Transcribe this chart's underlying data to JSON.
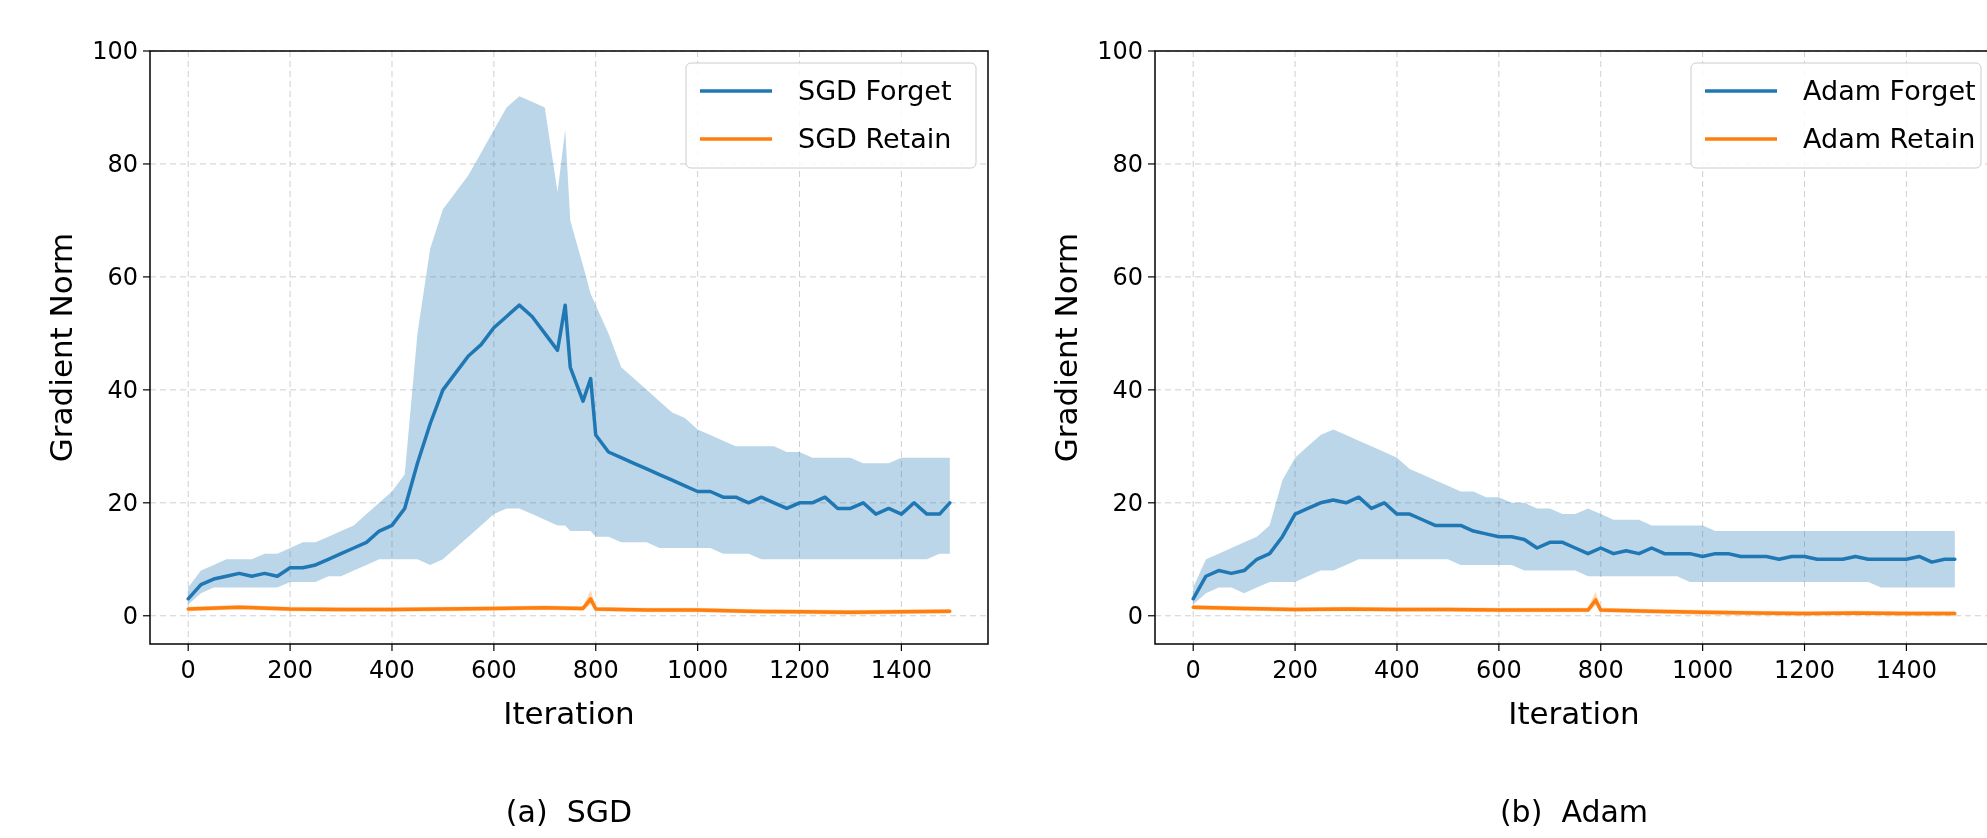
{
  "chart_data": [
    {
      "type": "line",
      "xlabel": "Iteration",
      "ylabel": "Gradient Norm",
      "xlim": [
        -75,
        1570
      ],
      "ylim": [
        -5,
        100
      ],
      "xticks": [
        0,
        200,
        400,
        600,
        800,
        1000,
        1200,
        1400
      ],
      "yticks": [
        0,
        20,
        40,
        60,
        80,
        100
      ],
      "grid": true,
      "legend": "top right",
      "line_style": "solid",
      "annotations": [
        "(a)  SGD"
      ],
      "series": [
        {
          "name": "SGD Forget",
          "color": "#1f77b4",
          "x": [
            0,
            25,
            50,
            75,
            100,
            125,
            150,
            175,
            200,
            225,
            250,
            275,
            300,
            325,
            350,
            375,
            400,
            425,
            450,
            475,
            500,
            525,
            550,
            575,
            600,
            625,
            650,
            675,
            700,
            725,
            740,
            750,
            775,
            790,
            800,
            825,
            850,
            875,
            900,
            925,
            950,
            975,
            1000,
            1025,
            1050,
            1075,
            1100,
            1125,
            1150,
            1175,
            1200,
            1225,
            1250,
            1275,
            1300,
            1325,
            1350,
            1375,
            1400,
            1425,
            1450,
            1475,
            1495
          ],
          "values": [
            3,
            5.5,
            6.5,
            7,
            7.5,
            7,
            7.5,
            7,
            8.5,
            8.5,
            9,
            10,
            11,
            12,
            13,
            15,
            16,
            19,
            27,
            34,
            40,
            43,
            46,
            48,
            51,
            53,
            55,
            53,
            50,
            47,
            55,
            44,
            38,
            42,
            32,
            29,
            28,
            27,
            26,
            25,
            24,
            23,
            22,
            22,
            21,
            21,
            20,
            21,
            20,
            19,
            20,
            20,
            21,
            19,
            19,
            20,
            18,
            19,
            18,
            20,
            18,
            18,
            20
          ],
          "lower": [
            2,
            4,
            5,
            5,
            5,
            5,
            5,
            5,
            6,
            6,
            6,
            7,
            7,
            8,
            9,
            10,
            10,
            10,
            10,
            9,
            10,
            12,
            14,
            16,
            18,
            19,
            19,
            18,
            17,
            16,
            16,
            15,
            15,
            15,
            14,
            14,
            13,
            13,
            13,
            12,
            12,
            12,
            12,
            12,
            11,
            11,
            11,
            10,
            10,
            10,
            10,
            10,
            10,
            10,
            10,
            10,
            10,
            10,
            10,
            10,
            10,
            11,
            11
          ],
          "upper": [
            5,
            8,
            9,
            10,
            10,
            10,
            11,
            11,
            12,
            13,
            13,
            14,
            15,
            16,
            18,
            20,
            22,
            25,
            50,
            65,
            72,
            75,
            78,
            82,
            86,
            90,
            92,
            91,
            90,
            75,
            86,
            70,
            62,
            57,
            55,
            50,
            44,
            42,
            40,
            38,
            36,
            35,
            33,
            32,
            31,
            30,
            30,
            30,
            30,
            29,
            29,
            28,
            28,
            28,
            28,
            27,
            27,
            27,
            28,
            28,
            28,
            28,
            28
          ]
        },
        {
          "name": "SGD Retain",
          "color": "#ff7f0e",
          "x": [
            0,
            100,
            200,
            300,
            400,
            500,
            600,
            700,
            775,
            790,
            800,
            900,
            1000,
            1100,
            1200,
            1300,
            1400,
            1495
          ],
          "values": [
            1.2,
            1.5,
            1.2,
            1.1,
            1.1,
            1.2,
            1.3,
            1.4,
            1.3,
            3,
            1.2,
            1,
            1,
            0.8,
            0.7,
            0.6,
            0.7,
            0.8
          ],
          "lower": [
            0.8,
            1.1,
            0.8,
            0.7,
            0.7,
            0.8,
            0.9,
            1,
            0.9,
            2,
            0.8,
            0.6,
            0.6,
            0.4,
            0.3,
            0.2,
            0.3,
            0.4
          ],
          "upper": [
            1.6,
            1.9,
            1.6,
            1.5,
            1.5,
            1.6,
            1.7,
            1.8,
            1.7,
            4.5,
            1.6,
            1.4,
            1.4,
            1.2,
            1.1,
            1,
            1.1,
            1.2
          ]
        }
      ]
    },
    {
      "type": "line",
      "xlabel": "Iteration",
      "ylabel": "Gradient Norm",
      "xlim": [
        -75,
        1570
      ],
      "ylim": [
        -5,
        100
      ],
      "xticks": [
        0,
        200,
        400,
        600,
        800,
        1000,
        1200,
        1400
      ],
      "yticks": [
        0,
        20,
        40,
        60,
        80,
        100
      ],
      "grid": true,
      "legend": "top right",
      "line_style": "solid",
      "annotations": [
        "(b)  Adam"
      ],
      "series": [
        {
          "name": "Adam Forget",
          "color": "#1f77b4",
          "x": [
            0,
            25,
            50,
            75,
            100,
            125,
            150,
            175,
            200,
            225,
            250,
            275,
            300,
            325,
            350,
            375,
            400,
            425,
            450,
            475,
            500,
            525,
            550,
            575,
            600,
            625,
            650,
            675,
            700,
            725,
            750,
            775,
            800,
            825,
            850,
            875,
            900,
            925,
            950,
            975,
            1000,
            1025,
            1050,
            1075,
            1100,
            1125,
            1150,
            1175,
            1200,
            1225,
            1250,
            1275,
            1300,
            1325,
            1350,
            1375,
            1400,
            1425,
            1450,
            1475,
            1495
          ],
          "values": [
            3,
            7,
            8,
            7.5,
            8,
            10,
            11,
            14,
            18,
            19,
            20,
            20.5,
            20,
            21,
            19,
            20,
            18,
            18,
            17,
            16,
            16,
            16,
            15,
            14.5,
            14,
            14,
            13.5,
            12,
            13,
            13,
            12,
            11,
            12,
            11,
            11.5,
            11,
            12,
            11,
            11,
            11,
            10.5,
            11,
            11,
            10.5,
            10.5,
            10.5,
            10,
            10.5,
            10.5,
            10,
            10,
            10,
            10.5,
            10,
            10,
            10,
            10,
            10.5,
            9.5,
            10,
            10
          ],
          "lower": [
            2,
            4,
            5,
            5,
            4,
            5,
            6,
            6,
            6,
            7,
            8,
            8,
            9,
            10,
            10,
            10,
            10,
            10,
            10,
            10,
            10,
            9,
            9,
            9,
            9,
            9,
            8,
            8,
            8,
            8,
            8,
            7,
            7,
            7,
            7,
            7,
            7,
            7,
            7,
            6,
            6,
            6,
            6,
            6,
            6,
            6,
            6,
            6,
            6,
            6,
            6,
            6,
            6,
            6,
            5,
            5,
            5,
            5,
            5,
            5,
            5
          ],
          "upper": [
            5,
            10,
            11,
            12,
            13,
            14,
            16,
            24,
            28,
            30,
            32,
            33,
            32,
            31,
            30,
            29,
            28,
            26,
            25,
            24,
            23,
            22,
            22,
            21,
            21,
            20,
            20,
            19,
            19,
            18,
            18,
            19,
            18,
            17,
            17,
            17,
            16,
            16,
            16,
            16,
            16,
            15,
            15,
            15,
            15,
            15,
            15,
            15,
            15,
            15,
            15,
            15,
            15,
            15,
            15,
            15,
            15,
            15,
            15,
            15,
            15
          ]
        },
        {
          "name": "Adam Retain",
          "color": "#ff7f0e",
          "x": [
            0,
            100,
            200,
            300,
            400,
            500,
            600,
            700,
            775,
            790,
            800,
            900,
            1000,
            1100,
            1200,
            1300,
            1400,
            1495
          ],
          "values": [
            1.5,
            1.3,
            1.1,
            1.2,
            1.1,
            1.1,
            1,
            1,
            1,
            2.8,
            1,
            0.8,
            0.6,
            0.5,
            0.4,
            0.5,
            0.4,
            0.4
          ],
          "lower": [
            1.1,
            0.9,
            0.7,
            0.8,
            0.7,
            0.7,
            0.6,
            0.6,
            0.6,
            1.8,
            0.6,
            0.4,
            0.2,
            0.1,
            0,
            0.1,
            0,
            0
          ],
          "upper": [
            1.9,
            1.7,
            1.5,
            1.6,
            1.5,
            1.5,
            1.4,
            1.4,
            1.4,
            4.2,
            1.4,
            1.2,
            1,
            0.9,
            0.8,
            0.9,
            0.8,
            0.8
          ]
        }
      ]
    }
  ]
}
